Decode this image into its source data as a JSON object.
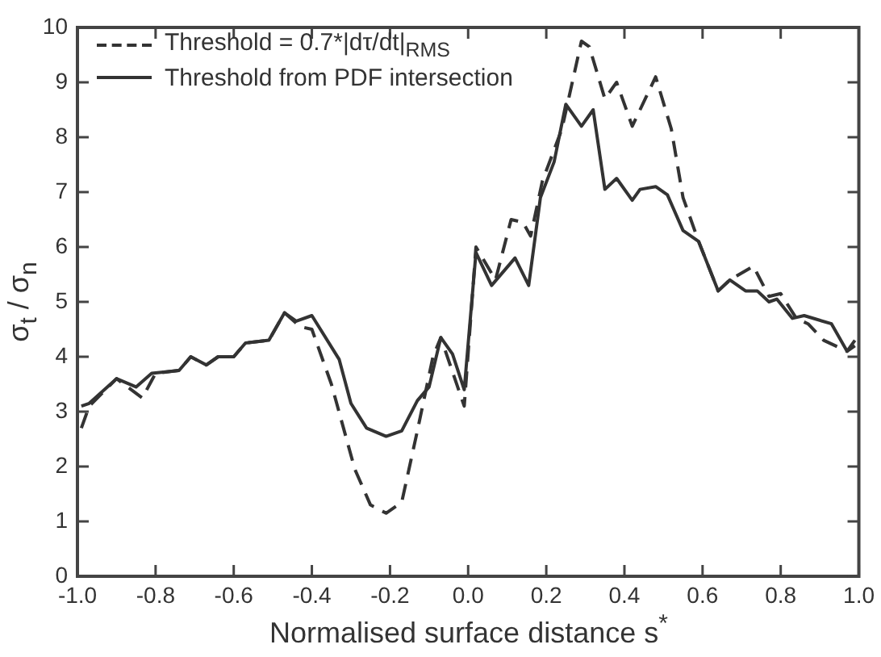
{
  "chart_data": {
    "type": "line",
    "xlabel": "Normalised surface distance s$^{*}$",
    "ylabel": "σ$_{t}$ / σ$_{n}$",
    "xlim": [
      -1,
      1
    ],
    "xticks": [
      {
        "value": -1,
        "label": "-1.0"
      },
      -0.8,
      -0.6,
      -0.4,
      -0.2,
      {
        "value": 0,
        "label": "0.0"
      },
      0.2,
      0.4,
      0.6,
      0.8,
      {
        "value": 1,
        "label": "1.0"
      }
    ],
    "ylim": [
      0,
      10
    ],
    "yticks": [
      0,
      1,
      2,
      3,
      4,
      5,
      6,
      7,
      8,
      9,
      10
    ],
    "grid": false,
    "legend": "top left",
    "marker": "none",
    "series": [
      {
        "name": "Threshold = 0.7*|dτ/dt|$_{RMS}$",
        "color": "#333333",
        "line_style": "dashed",
        "x": [
          -0.99,
          -0.97,
          -0.9,
          -0.834,
          -0.8,
          -0.74,
          -0.71,
          -0.67,
          -0.64,
          -0.6,
          -0.57,
          -0.51,
          -0.47,
          -0.43,
          -0.4,
          -0.35,
          -0.29,
          -0.25,
          -0.21,
          -0.17,
          -0.13,
          -0.09,
          -0.07,
          -0.01,
          0.02,
          0.07,
          0.11,
          0.14,
          0.16,
          0.19,
          0.24,
          0.29,
          0.31,
          0.35,
          0.38,
          0.42,
          0.48,
          0.52,
          0.55,
          0.59,
          0.64,
          0.67,
          0.73,
          0.77,
          0.8,
          0.84,
          0.87,
          0.91,
          0.97,
          0.99
        ],
        "values": [
          2.7,
          3.1,
          3.6,
          3.25,
          3.7,
          3.75,
          4.0,
          3.85,
          4.0,
          4.0,
          4.25,
          4.3,
          4.8,
          4.55,
          4.5,
          3.5,
          1.95,
          1.3,
          1.15,
          1.35,
          2.65,
          4.0,
          4.35,
          3.1,
          6.0,
          5.4,
          6.5,
          6.45,
          6.2,
          7.2,
          8.15,
          9.75,
          9.65,
          8.7,
          9.0,
          8.2,
          9.1,
          8.15,
          6.9,
          6.1,
          5.2,
          5.4,
          5.65,
          5.1,
          5.15,
          4.7,
          4.6,
          4.3,
          4.1,
          4.3
        ]
      },
      {
        "name": "Threshold from PDF intersection",
        "color": "#333333",
        "line_style": "solid",
        "x": [
          -0.99,
          -0.97,
          -0.9,
          -0.85,
          -0.81,
          -0.74,
          -0.71,
          -0.67,
          -0.64,
          -0.6,
          -0.57,
          -0.51,
          -0.47,
          -0.44,
          -0.4,
          -0.33,
          -0.3,
          -0.26,
          -0.21,
          -0.17,
          -0.13,
          -0.1,
          -0.07,
          -0.04,
          -0.01,
          0.02,
          0.06,
          0.12,
          0.155,
          0.185,
          0.22,
          0.25,
          0.29,
          0.32,
          0.35,
          0.38,
          0.42,
          0.44,
          0.48,
          0.51,
          0.55,
          0.59,
          0.64,
          0.67,
          0.71,
          0.74,
          0.77,
          0.79,
          0.83,
          0.86,
          0.93,
          0.97,
          0.99
        ],
        "values": [
          3.1,
          3.15,
          3.6,
          3.45,
          3.7,
          3.75,
          4.0,
          3.85,
          4.0,
          4.0,
          4.25,
          4.3,
          4.8,
          4.65,
          4.75,
          3.95,
          3.15,
          2.7,
          2.55,
          2.65,
          3.2,
          3.45,
          4.35,
          4.05,
          3.4,
          5.9,
          5.3,
          5.8,
          5.3,
          6.9,
          7.55,
          8.6,
          8.2,
          8.5,
          7.05,
          7.25,
          6.85,
          7.05,
          7.1,
          6.95,
          6.3,
          6.1,
          5.2,
          5.4,
          5.2,
          5.2,
          5.0,
          5.05,
          4.7,
          4.75,
          4.6,
          4.1,
          4.2
        ]
      }
    ]
  }
}
